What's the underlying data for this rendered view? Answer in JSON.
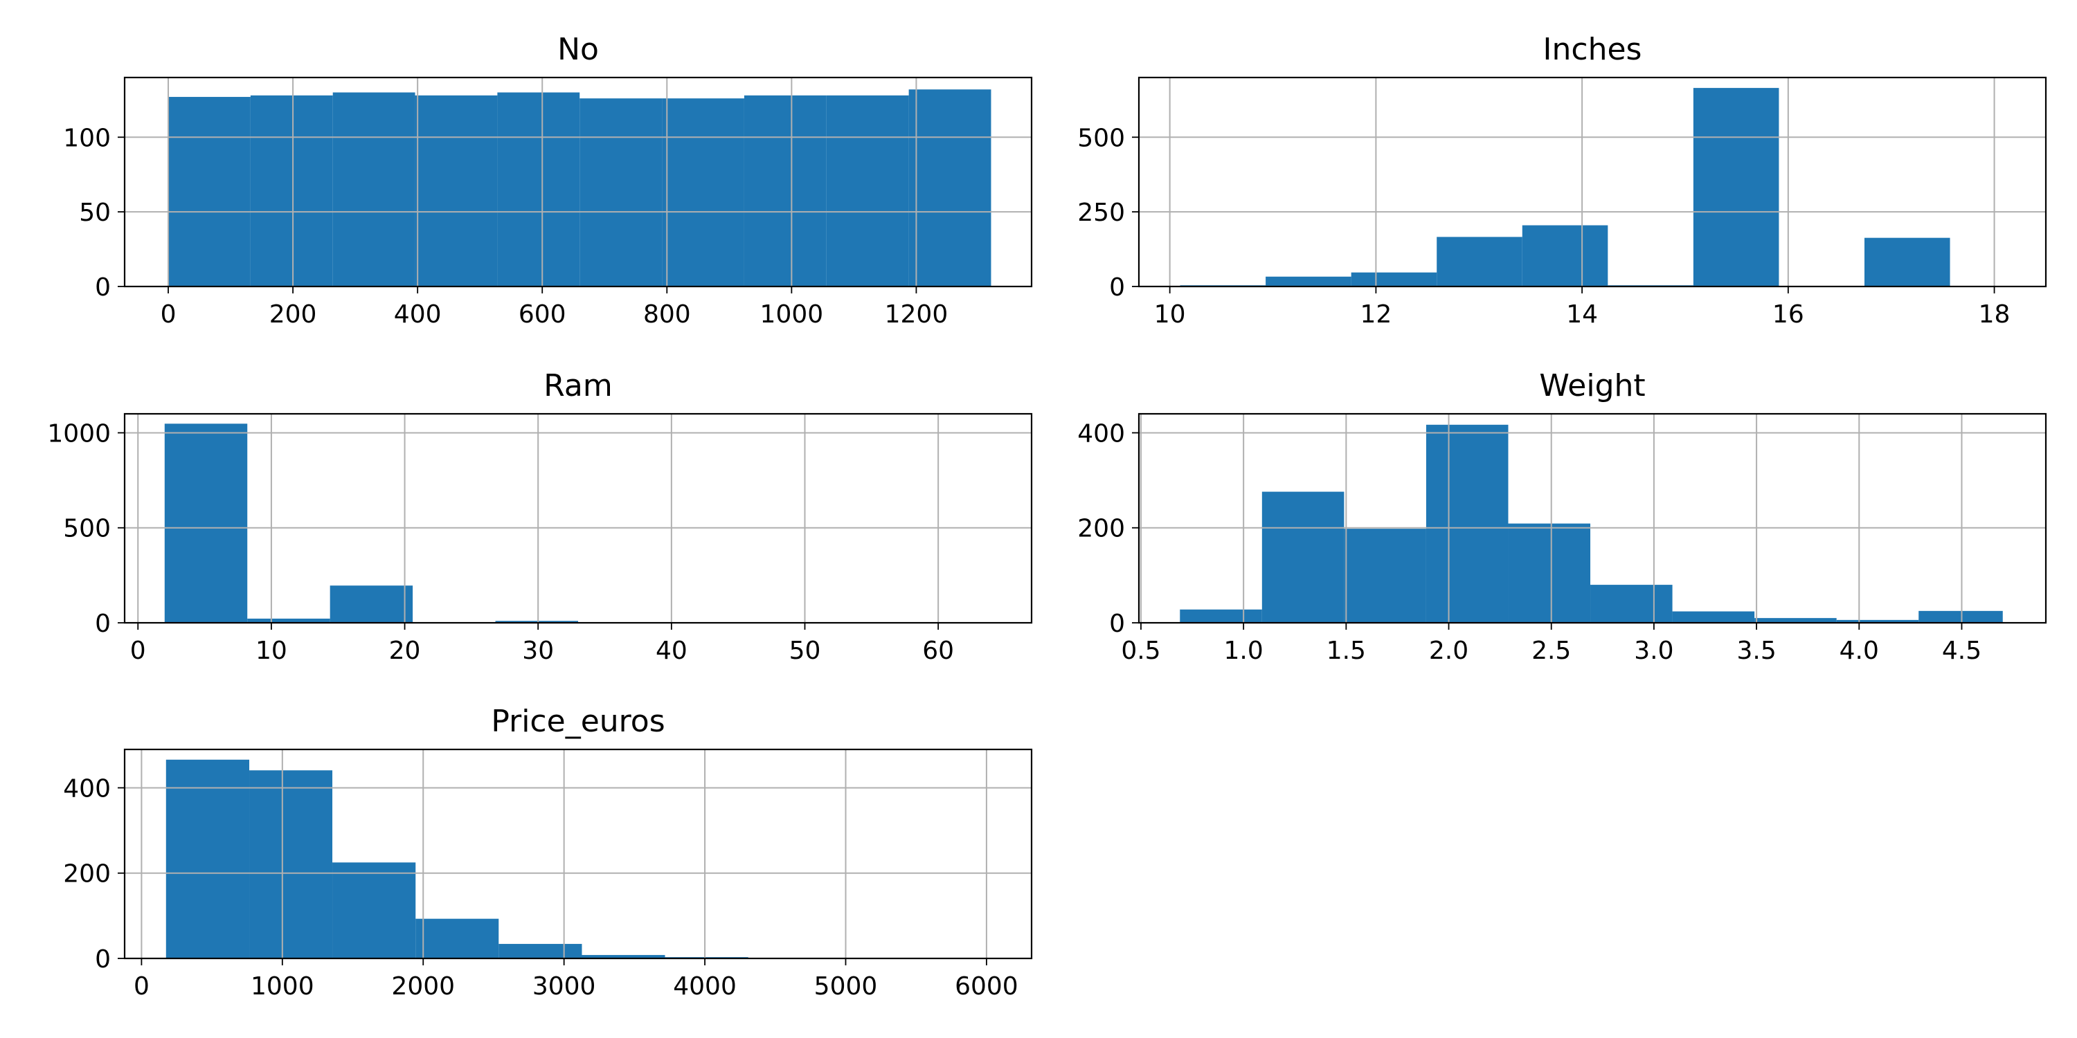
{
  "chart_data": [
    {
      "type": "bar",
      "title": "No",
      "bar_color": "#1f77b4",
      "grid": true,
      "xlim": [
        -70,
        1385
      ],
      "ylim": [
        0,
        140
      ],
      "xticks": [
        0,
        200,
        400,
        600,
        800,
        1000,
        1200
      ],
      "yticks": [
        0,
        50,
        100
      ],
      "bins": [
        {
          "x0": 0,
          "x1": 132,
          "count": 127
        },
        {
          "x0": 132,
          "x1": 264,
          "count": 128
        },
        {
          "x0": 264,
          "x1": 396,
          "count": 130
        },
        {
          "x0": 396,
          "x1": 528,
          "count": 128
        },
        {
          "x0": 528,
          "x1": 660,
          "count": 130
        },
        {
          "x0": 660,
          "x1": 792,
          "count": 126
        },
        {
          "x0": 792,
          "x1": 924,
          "count": 126
        },
        {
          "x0": 924,
          "x1": 1056,
          "count": 128
        },
        {
          "x0": 1056,
          "x1": 1188,
          "count": 128
        },
        {
          "x0": 1188,
          "x1": 1320,
          "count": 132
        }
      ]
    },
    {
      "type": "bar",
      "title": "Inches",
      "bar_color": "#1f77b4",
      "grid": true,
      "xlim": [
        9.7,
        18.5
      ],
      "ylim": [
        0,
        700
      ],
      "xticks": [
        10,
        12,
        14,
        16,
        18
      ],
      "yticks": [
        0,
        250,
        500
      ],
      "bins": [
        {
          "x0": 10.1,
          "x1": 10.93,
          "count": 4
        },
        {
          "x0": 10.93,
          "x1": 11.76,
          "count": 33
        },
        {
          "x0": 11.76,
          "x1": 12.59,
          "count": 47
        },
        {
          "x0": 12.59,
          "x1": 13.42,
          "count": 166
        },
        {
          "x0": 13.42,
          "x1": 14.25,
          "count": 205
        },
        {
          "x0": 14.25,
          "x1": 15.08,
          "count": 4
        },
        {
          "x0": 15.08,
          "x1": 15.91,
          "count": 665
        },
        {
          "x0": 15.91,
          "x1": 16.74,
          "count": 0
        },
        {
          "x0": 16.74,
          "x1": 17.57,
          "count": 163
        },
        {
          "x0": 17.57,
          "x1": 18.4,
          "count": 1
        }
      ]
    },
    {
      "type": "bar",
      "title": "Ram",
      "bar_color": "#1f77b4",
      "grid": true,
      "xlim": [
        -1,
        67
      ],
      "ylim": [
        0,
        1100
      ],
      "xticks": [
        0,
        10,
        20,
        30,
        40,
        50,
        60
      ],
      "yticks": [
        0,
        500,
        1000
      ],
      "bins": [
        {
          "x0": 2,
          "x1": 8.2,
          "count": 1048
        },
        {
          "x0": 8.2,
          "x1": 14.4,
          "count": 22
        },
        {
          "x0": 14.4,
          "x1": 20.6,
          "count": 196
        },
        {
          "x0": 20.6,
          "x1": 26.8,
          "count": 1
        },
        {
          "x0": 26.8,
          "x1": 33,
          "count": 10
        },
        {
          "x0": 33,
          "x1": 39.2,
          "count": 1
        },
        {
          "x0": 39.2,
          "x1": 45.4,
          "count": 0
        },
        {
          "x0": 45.4,
          "x1": 51.6,
          "count": 0
        },
        {
          "x0": 51.6,
          "x1": 57.8,
          "count": 0
        },
        {
          "x0": 57.8,
          "x1": 64,
          "count": 1
        }
      ]
    },
    {
      "type": "bar",
      "title": "Weight",
      "bar_color": "#1f77b4",
      "grid": true,
      "xlim": [
        0.49,
        4.91
      ],
      "ylim": [
        0,
        440
      ],
      "xticks": [
        0.5,
        1.0,
        1.5,
        2.0,
        2.5,
        3.0,
        3.5,
        4.0,
        4.5
      ],
      "xtick_labels": [
        "0.5",
        "1.0",
        "1.5",
        "2.0",
        "2.5",
        "3.0",
        "3.5",
        "4.0",
        "4.5"
      ],
      "yticks": [
        0,
        200,
        400
      ],
      "bins": [
        {
          "x0": 0.69,
          "x1": 1.09,
          "count": 28
        },
        {
          "x0": 1.09,
          "x1": 1.49,
          "count": 276
        },
        {
          "x0": 1.49,
          "x1": 1.89,
          "count": 198
        },
        {
          "x0": 1.89,
          "x1": 2.29,
          "count": 417
        },
        {
          "x0": 2.29,
          "x1": 2.69,
          "count": 209
        },
        {
          "x0": 2.69,
          "x1": 3.09,
          "count": 80
        },
        {
          "x0": 3.09,
          "x1": 3.49,
          "count": 24
        },
        {
          "x0": 3.49,
          "x1": 3.89,
          "count": 10
        },
        {
          "x0": 3.89,
          "x1": 4.29,
          "count": 6
        },
        {
          "x0": 4.29,
          "x1": 4.7,
          "count": 25
        }
      ]
    },
    {
      "type": "bar",
      "title": "Price_euros",
      "bar_color": "#1f77b4",
      "grid": true,
      "xlim": [
        -120,
        6320
      ],
      "ylim": [
        0,
        490
      ],
      "xticks": [
        0,
        1000,
        2000,
        3000,
        4000,
        5000,
        6000
      ],
      "yticks": [
        0,
        200,
        400
      ],
      "bins": [
        {
          "x0": 174,
          "x1": 765,
          "count": 466
        },
        {
          "x0": 765,
          "x1": 1355,
          "count": 441
        },
        {
          "x0": 1355,
          "x1": 1946,
          "count": 225
        },
        {
          "x0": 1946,
          "x1": 2536,
          "count": 93
        },
        {
          "x0": 2536,
          "x1": 3127,
          "count": 34
        },
        {
          "x0": 3127,
          "x1": 3717,
          "count": 8
        },
        {
          "x0": 3717,
          "x1": 4308,
          "count": 3
        },
        {
          "x0": 4308,
          "x1": 4898,
          "count": 1
        },
        {
          "x0": 4898,
          "x1": 5489,
          "count": 0
        },
        {
          "x0": 5489,
          "x1": 6099,
          "count": 1
        }
      ]
    }
  ]
}
